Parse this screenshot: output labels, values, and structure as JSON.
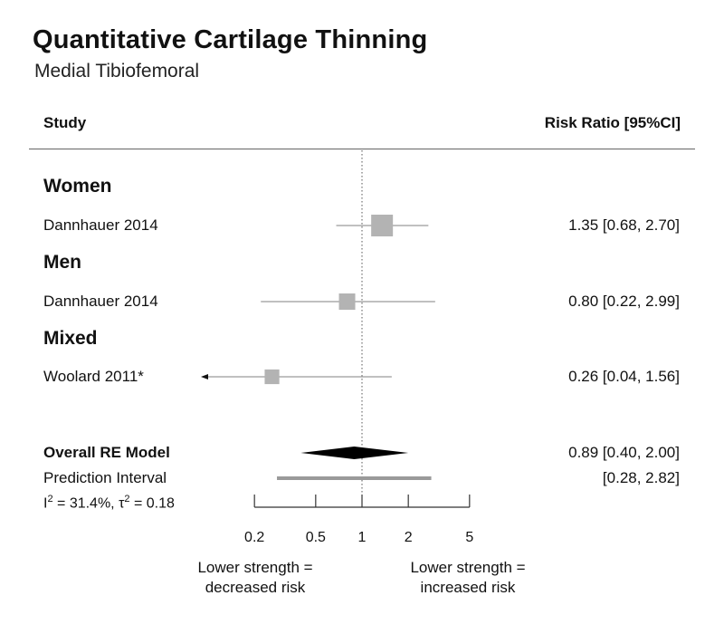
{
  "chart_data": {
    "type": "forest",
    "title": "Quantitative Cartilage Thinning",
    "subtitle": "Medial Tibiofemoral",
    "columns": {
      "study": "Study",
      "effect": "Risk Ratio [95%CI]"
    },
    "scale": "log",
    "xlim": [
      0.2,
      5
    ],
    "xticks": [
      0.2,
      0.5,
      1,
      2,
      5
    ],
    "xtick_labels": [
      "0.2",
      "0.5",
      "1",
      "2",
      "5"
    ],
    "reference_line": 1,
    "groups": [
      {
        "label": "Women",
        "studies": [
          {
            "name": "Dannhauer 2014",
            "rr": 1.35,
            "lower": 0.68,
            "upper": 2.7,
            "ci_text": "1.35 [0.68, 2.70]",
            "weight": 1.0
          }
        ]
      },
      {
        "label": "Men",
        "studies": [
          {
            "name": "Dannhauer 2014",
            "rr": 0.8,
            "lower": 0.22,
            "upper": 2.99,
            "ci_text": "0.80 [0.22, 2.99]",
            "weight": 0.5
          }
        ]
      },
      {
        "label": "Mixed",
        "studies": [
          {
            "name": "Woolard 2011*",
            "rr": 0.26,
            "lower": 0.04,
            "upper": 1.56,
            "ci_text": "0.26 [0.04, 1.56]",
            "weight": 0.35,
            "lower_truncated": true
          }
        ]
      }
    ],
    "overall": {
      "label": "Overall RE Model",
      "rr": 0.89,
      "lower": 0.4,
      "upper": 2.0,
      "ci_text": "0.89 [0.40, 2.00]"
    },
    "prediction_interval": {
      "label": "Prediction Interval",
      "lower": 0.28,
      "upper": 2.82,
      "ci_text": "[0.28, 2.82]"
    },
    "heterogeneity": {
      "i2_label": "I",
      "i2_value": " = 31.4%, ",
      "tau2_label": "τ",
      "tau2_value": " = 0.18",
      "sup": "2"
    },
    "x_captions": {
      "left": [
        "Lower strength =",
        "decreased risk"
      ],
      "right": [
        "Lower strength =",
        "increased risk"
      ]
    },
    "colors": {
      "marker": "#b3b3b3",
      "line": "#9a9a9a",
      "diamond": "#000000",
      "axis": "#333333",
      "divider": "#777777"
    }
  }
}
